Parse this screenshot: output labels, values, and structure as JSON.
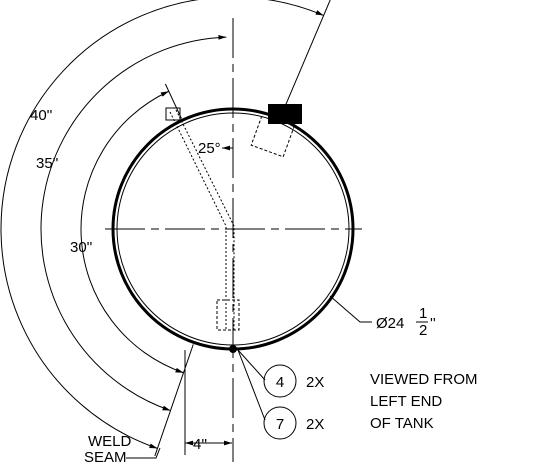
{
  "dimensions": {
    "arc_outer": "40''",
    "arc_middle": "35''",
    "arc_inner": "30''",
    "angle": "25°",
    "offset": "4''"
  },
  "diameter": {
    "prefix": "Ø24",
    "numerator": "1",
    "denominator": "2",
    "suffix": "''"
  },
  "balloons": [
    {
      "label": "4",
      "qty": "2X"
    },
    {
      "label": "7",
      "qty": "2X"
    }
  ],
  "note": [
    "VIEWED FROM",
    "LEFT END",
    "OF TANK"
  ],
  "weld": [
    "WELD",
    "SEAM"
  ]
}
